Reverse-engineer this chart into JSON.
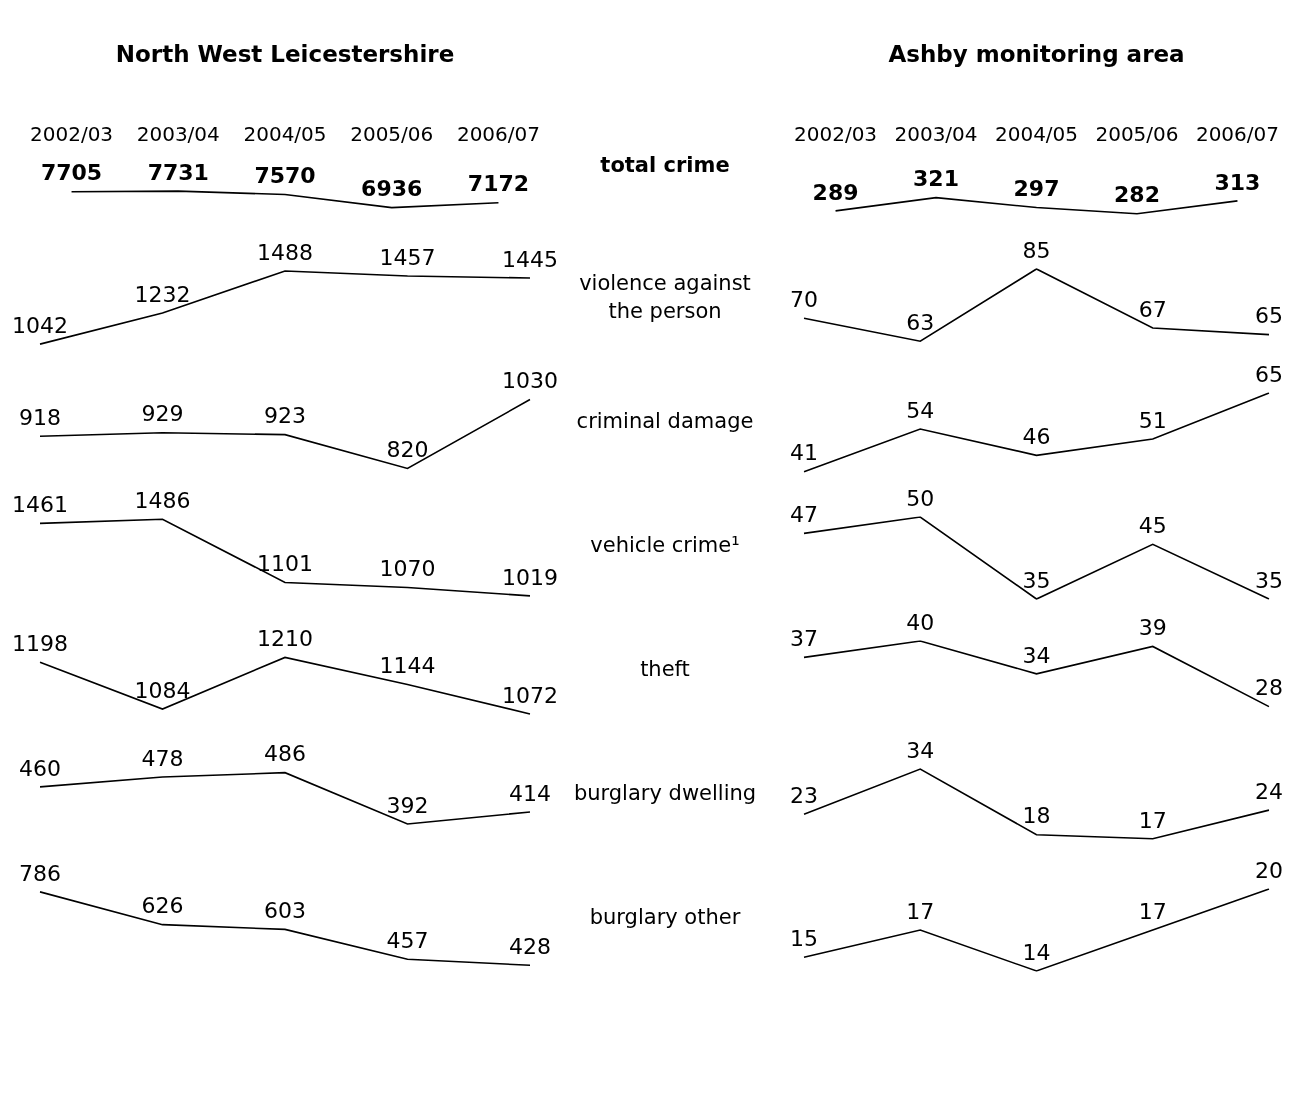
{
  "chart_data": [
    {
      "type": "line",
      "title": "North West Leicestershire",
      "categories": [
        "2002/03",
        "2003/04",
        "2004/05",
        "2005/06",
        "2006/07"
      ],
      "values": [
        7705,
        7731,
        7570,
        6936,
        7172
      ],
      "color": "#000000",
      "data_labels": true,
      "tick_labels": "x"
    },
    {
      "type": "line",
      "title": "Ashby monitoring area",
      "ylabel": "total crime",
      "categories": [
        "2002/03",
        "2003/04",
        "2004/05",
        "2005/06",
        "2006/07"
      ],
      "values": [
        289,
        321,
        297,
        282,
        313
      ],
      "color": "#000000",
      "data_labels": true,
      "tick_labels": "x"
    },
    {
      "type": "line",
      "categories": [
        null,
        null,
        null,
        null,
        null
      ],
      "values": [
        1042,
        1232,
        1488,
        1457,
        1445
      ],
      "color": "#000000",
      "data_labels": true,
      "tick_labels": false
    },
    {
      "type": "line",
      "ylabel": "violence against the person",
      "categories": [
        null,
        null,
        null,
        null,
        null
      ],
      "values": [
        70,
        63,
        85,
        67,
        65
      ],
      "color": "#000000",
      "data_labels": true,
      "tick_labels": false
    },
    {
      "type": "line",
      "categories": [
        null,
        null,
        null,
        null,
        null
      ],
      "values": [
        918,
        929,
        923,
        820,
        1030
      ],
      "color": "#000000",
      "data_labels": true,
      "tick_labels": false
    },
    {
      "type": "line",
      "ylabel": "criminal damage",
      "categories": [
        null,
        null,
        null,
        null,
        null
      ],
      "values": [
        41,
        54,
        46,
        51,
        65
      ],
      "color": "#000000",
      "data_labels": true,
      "tick_labels": false
    },
    {
      "type": "line",
      "categories": [
        null,
        null,
        null,
        null,
        null
      ],
      "values": [
        1461,
        1486,
        1101,
        1070,
        1019
      ],
      "color": "#000000",
      "data_labels": true,
      "tick_labels": false
    },
    {
      "type": "line",
      "ylabel": "vehicle crime¹",
      "categories": [
        null,
        null,
        null,
        null,
        null
      ],
      "values": [
        47,
        50,
        35,
        45,
        35
      ],
      "color": "#000000",
      "data_labels": true,
      "tick_labels": false
    },
    {
      "type": "line",
      "categories": [
        null,
        null,
        null,
        null,
        null
      ],
      "values": [
        1198,
        1084,
        1210,
        1144,
        1072
      ],
      "color": "#000000",
      "data_labels": true,
      "tick_labels": false
    },
    {
      "type": "line",
      "ylabel": "theft",
      "categories": [
        null,
        null,
        null,
        null,
        null
      ],
      "values": [
        37,
        40,
        34,
        39,
        28
      ],
      "color": "#000000",
      "data_labels": true,
      "tick_labels": false
    },
    {
      "type": "line",
      "categories": [
        null,
        null,
        null,
        null,
        null
      ],
      "values": [
        460,
        478,
        486,
        392,
        414
      ],
      "color": "#000000",
      "data_labels": true,
      "tick_labels": false
    },
    {
      "type": "line",
      "ylabel": "burglary dwelling",
      "categories": [
        null,
        null,
        null,
        null,
        null
      ],
      "values": [
        23,
        34,
        18,
        17,
        24
      ],
      "color": "#000000",
      "data_labels": true,
      "tick_labels": false
    },
    {
      "type": "line",
      "categories": [
        null,
        null,
        null,
        null,
        null
      ],
      "values": [
        786,
        626,
        603,
        457,
        428
      ],
      "color": "#000000",
      "data_labels": true,
      "tick_labels": false
    },
    {
      "type": "line",
      "ylabel": "burglary other",
      "categories": [
        null,
        null,
        null,
        null,
        null
      ],
      "values": [
        15,
        17,
        14,
        17,
        20
      ],
      "color": "#000000",
      "data_labels": true,
      "tick_labels": false
    }
  ]
}
